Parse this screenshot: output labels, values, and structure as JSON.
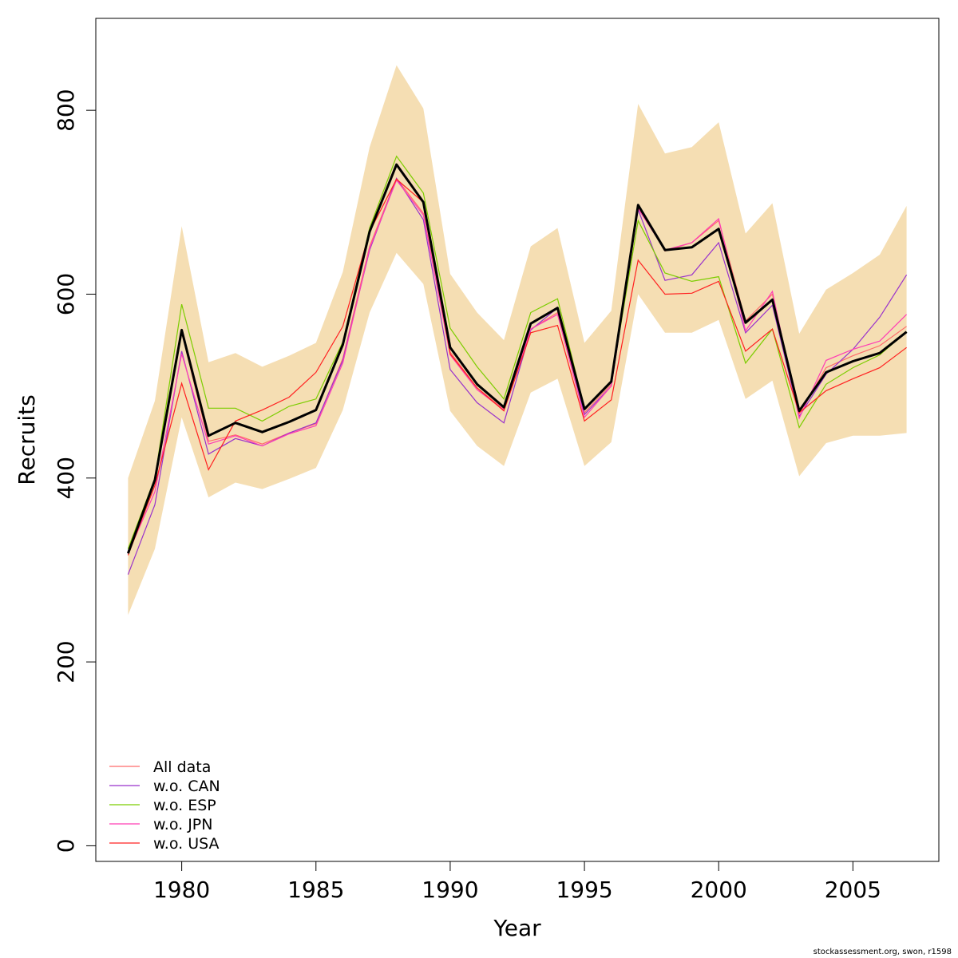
{
  "footer": "stockassessment.org, swon, r1598",
  "chart_data": {
    "type": "line",
    "title": "",
    "xlabel": "Year",
    "ylabel": "Recruits",
    "xlim": [
      1976.8,
      2008.2
    ],
    "ylim": [
      -17,
      900
    ],
    "xticks": [
      1980,
      1985,
      1990,
      1995,
      2000,
      2005
    ],
    "yticks": [
      0,
      200,
      400,
      600,
      800
    ],
    "grid": false,
    "legend_position": "bottom-left",
    "x": [
      1978,
      1979,
      1980,
      1981,
      1982,
      1983,
      1984,
      1985,
      1986,
      1987,
      1988,
      1989,
      1990,
      1991,
      1992,
      1993,
      1994,
      1995,
      1996,
      1997,
      1998,
      1999,
      2000,
      2001,
      2002,
      2003,
      2004,
      2005,
      2006,
      2007
    ],
    "estimate": [
      318,
      398,
      561,
      446,
      460,
      450,
      461,
      474,
      545,
      668,
      741,
      700,
      542,
      502,
      477,
      568,
      585,
      475,
      505,
      697,
      648,
      651,
      671,
      569,
      594,
      473,
      515,
      527,
      536,
      559
    ],
    "band_upper": [
      400,
      484,
      674,
      526,
      536,
      521,
      533,
      547,
      624,
      760,
      849,
      802,
      622,
      580,
      550,
      652,
      672,
      547,
      582,
      807,
      753,
      760,
      787,
      666,
      699,
      557,
      605,
      623,
      643,
      696
    ],
    "band_lower": [
      251,
      323,
      466,
      379,
      395,
      388,
      399,
      411,
      474,
      580,
      645,
      611,
      473,
      435,
      413,
      493,
      508,
      413,
      439,
      600,
      558,
      558,
      572,
      486,
      506,
      402,
      438,
      446,
      446,
      449
    ],
    "band_color": "#f5deb3",
    "estimate_color": "#000000",
    "series": [
      {
        "name": "All data",
        "color": "#ff6a6a",
        "values": [
          320,
          396,
          558,
          440,
          447,
          437,
          449,
          459,
          530,
          652,
          726,
          688,
          537,
          498,
          475,
          562,
          580,
          471,
          502,
          695,
          647,
          656,
          680,
          571,
          600,
          470,
          520,
          533,
          544,
          565
        ]
      },
      {
        "name": "w.o. CAN",
        "color": "#9932cc",
        "values": [
          295,
          371,
          538,
          426,
          443,
          435,
          449,
          460,
          528,
          648,
          726,
          681,
          518,
          482,
          460,
          561,
          585,
          469,
          500,
          692,
          615,
          621,
          656,
          558,
          588,
          467,
          513,
          540,
          575,
          621
        ]
      },
      {
        "name": "w.o. ESP",
        "color": "#7ccd00",
        "values": [
          323,
          400,
          589,
          476,
          476,
          462,
          478,
          486,
          548,
          672,
          750,
          710,
          563,
          521,
          486,
          580,
          595,
          476,
          504,
          680,
          623,
          614,
          619,
          525,
          562,
          455,
          502,
          520,
          534,
          559
        ]
      },
      {
        "name": "w.o. JPN",
        "color": "#ff3eb5",
        "values": [
          318,
          385,
          535,
          437,
          446,
          435,
          448,
          457,
          525,
          650,
          724,
          686,
          534,
          496,
          474,
          562,
          578,
          466,
          500,
          693,
          648,
          656,
          682,
          560,
          603,
          465,
          528,
          540,
          549,
          578
        ]
      },
      {
        "name": "w.o. USA",
        "color": "#ff2020",
        "values": [
          316,
          392,
          503,
          409,
          462,
          474,
          488,
          515,
          565,
          668,
          725,
          700,
          535,
          498,
          473,
          558,
          566,
          462,
          485,
          637,
          600,
          601,
          614,
          538,
          562,
          471,
          495,
          508,
          520,
          542
        ]
      }
    ]
  }
}
